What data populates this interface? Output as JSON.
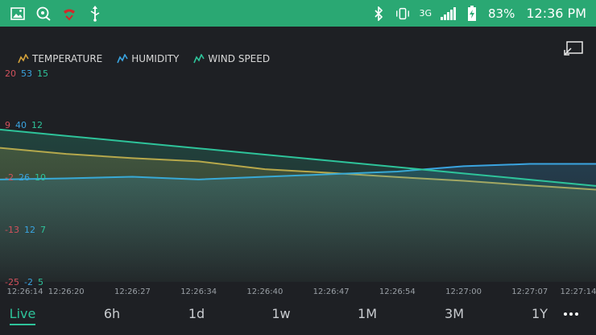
{
  "status_bar": {
    "battery_percent": "83%",
    "time": "12:36 PM",
    "network": "3G",
    "left_icons": [
      "image-icon",
      "chat-search-icon",
      "missed-call-icon",
      "usb-icon"
    ],
    "right_icons": [
      "bluetooth-icon",
      "vibrate-icon",
      "network-3g-icon",
      "signal-icon",
      "battery-icon"
    ]
  },
  "legend": [
    {
      "label": "TEMPERATURE",
      "color": "#d4a23a"
    },
    {
      "label": "HUMIDITY",
      "color": "#3aa4e0"
    },
    {
      "label": "WIND SPEED",
      "color": "#2ec39a"
    }
  ],
  "y_axis_labels": [
    {
      "t": "20",
      "h": "53",
      "w": "15"
    },
    {
      "t": "9",
      "h": "40",
      "w": "12"
    },
    {
      "t": "-2",
      "h": "26",
      "w": "10"
    },
    {
      "t": "-13",
      "h": "12",
      "w": "7"
    },
    {
      "t": "-25",
      "h": "-2",
      "w": "5"
    }
  ],
  "chart_data": {
    "type": "line",
    "x": [
      "12:26:14",
      "12:26:20",
      "12:26:27",
      "12:26:34",
      "12:26:40",
      "12:26:47",
      "12:26:54",
      "12:27:00",
      "12:27:07",
      "12:27:14"
    ],
    "series": [
      {
        "name": "TEMPERATURE",
        "color": "#d4a23a",
        "axis_range": [
          -25,
          20
        ],
        "values": [
          3.9,
          2.6,
          1.7,
          1.0,
          -0.7,
          -1.5,
          -2.4,
          -3.2,
          -4.2,
          -5.1
        ]
      },
      {
        "name": "HUMIDITY",
        "color": "#3aa4e0",
        "axis_range": [
          -2,
          53
        ],
        "values": [
          25.0,
          25.3,
          25.7,
          25.0,
          25.7,
          26.4,
          27.1,
          28.5,
          29.1,
          29.1
        ]
      },
      {
        "name": "WIND SPEED",
        "color": "#2ec39a",
        "axis_range": [
          5,
          15
        ],
        "values": [
          12.3,
          12.0,
          11.7,
          11.4,
          11.1,
          10.8,
          10.5,
          10.2,
          9.9,
          9.6
        ]
      }
    ],
    "grid": false,
    "legend_position": "top-left"
  },
  "range_selector": {
    "options": [
      "Live",
      "6h",
      "1d",
      "1w",
      "1M",
      "3M",
      "1Y"
    ],
    "active": "Live",
    "more_icon": "more-horizontal-icon"
  },
  "colors": {
    "background": "#1e2024",
    "status_bar": "#2aa873",
    "accent": "#2ec39a"
  }
}
